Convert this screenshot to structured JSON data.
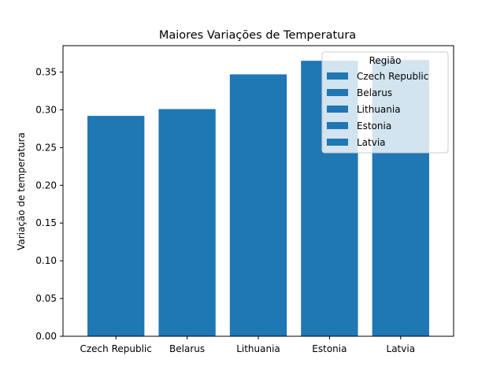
{
  "chart_data": {
    "type": "bar",
    "title": "Maiores Variações de Temperatura",
    "xlabel": "",
    "ylabel": "Variação de temperatura",
    "categories": [
      "Czech Republic",
      "Belarus",
      "Lithuania",
      "Estonia",
      "Latvia"
    ],
    "values": [
      0.292,
      0.301,
      0.347,
      0.365,
      0.366
    ],
    "ylim": [
      0,
      0.385
    ],
    "yticks": [
      "0.00",
      "0.05",
      "0.10",
      "0.15",
      "0.20",
      "0.25",
      "0.30",
      "0.35"
    ],
    "grid": false,
    "bar_color": "#1f77b4",
    "legend": {
      "title": "Região",
      "placement": "top-right",
      "entries": [
        "Czech Republic",
        "Belarus",
        "Lithuania",
        "Estonia",
        "Latvia"
      ]
    }
  }
}
